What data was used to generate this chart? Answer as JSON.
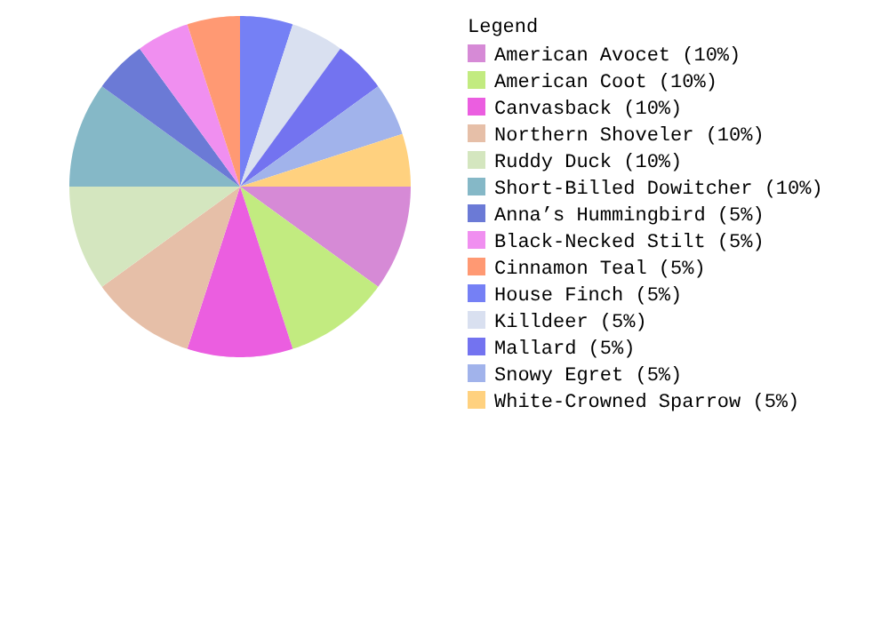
{
  "chart_data": {
    "type": "pie",
    "legend_title": "Legend",
    "legend": "right",
    "categories": [
      "American Avocet (10%)",
      "American Coot (10%)",
      "Canvasback (10%)",
      "Northern Shoveler (10%)",
      "Ruddy Duck (10%)",
      "Short-Billed Dowitcher (10%)",
      "Anna’s Hummingbird (5%)",
      "Black-Necked Stilt (5%)",
      "Cinnamon Teal (5%)",
      "House Finch (5%)",
      "Killdeer (5%)",
      "Mallard (5%)",
      "Snowy Egret (5%)",
      "White-Crowned Sparrow (5%)"
    ],
    "values": [
      10,
      10,
      10,
      10,
      10,
      10,
      5,
      5,
      5,
      5,
      5,
      5,
      5,
      5
    ],
    "colors": [
      "#d68ad6",
      "#c2eb80",
      "#eb5ee0",
      "#e6bfa8",
      "#d4e6bf",
      "#85b8c7",
      "#6b7ad6",
      "#f08ff0",
      "#ff9973",
      "#7580f5",
      "#d9e0f0",
      "#7373f0",
      "#a1b3eb",
      "#ffd17f"
    ]
  }
}
